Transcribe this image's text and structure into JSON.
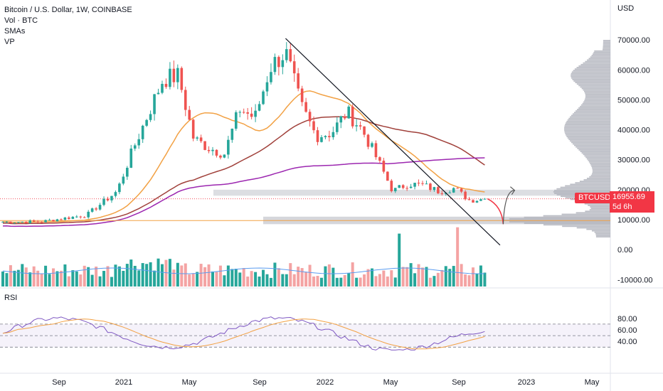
{
  "legend": {
    "title": "Bitcoin / U.S. Dollar, 1W, COINBASE",
    "vol": "Vol · BTC",
    "smas": "SMAs",
    "vp": "VP"
  },
  "axis_currency": "USD",
  "rsi_title": "RSI",
  "price_label": {
    "symbol": "BTCUSD",
    "price": "16955.69",
    "countdown": "5d 6h"
  },
  "colors": {
    "up": "#26a69a",
    "down": "#ef5350",
    "vol_up": "#26a69a",
    "vol_down": "#f4a3a3",
    "sma_short": "#f2a144",
    "sma_mid": "#a0403a",
    "sma_long": "#9c27b0",
    "vol_ma": "#5b9cf0",
    "rsi": "#7e57c2",
    "rsi_ma": "#f2a144",
    "vp": "#b2b5be",
    "badge": "#f23645"
  },
  "chart_data": {
    "type": "candlestick",
    "interval": "1W",
    "price_axis": {
      "ticks": [
        "70000.00",
        "60000.00",
        "50000.00",
        "40000.00",
        "30000.00",
        "20000.00",
        "10000.00",
        "0.00",
        "-10000.00"
      ],
      "values": [
        70000,
        60000,
        50000,
        40000,
        30000,
        20000,
        10000,
        0,
        -10000
      ]
    },
    "rsi_axis": {
      "ticks": [
        "80.00",
        "60.00",
        "40.00"
      ],
      "values": [
        80,
        60,
        40
      ],
      "bands": [
        70,
        50,
        30
      ]
    },
    "time_axis": {
      "labels": [
        "Sep",
        "2021",
        "May",
        "Sep",
        "2022",
        "May",
        "Sep",
        "2023",
        "May"
      ]
    },
    "price_series_anchors": [
      [
        "2020-07",
        9300
      ],
      [
        "2020-09",
        10800
      ],
      [
        "2020-10",
        11500
      ],
      [
        "2020-11",
        15500
      ],
      [
        "2020-12",
        19500
      ],
      [
        "2021-01",
        33000
      ],
      [
        "2021-02",
        45000
      ],
      [
        "2021-03",
        57000
      ],
      [
        "2021-04",
        58000
      ],
      [
        "2021-05",
        37000
      ],
      [
        "2021-06",
        34000
      ],
      [
        "2021-07",
        32000
      ],
      [
        "2021-08",
        47000
      ],
      [
        "2021-09",
        44000
      ],
      [
        "2021-10",
        61000
      ],
      [
        "2021-11",
        66000
      ],
      [
        "2021-12",
        48000
      ],
      [
        "2022-01",
        38000
      ],
      [
        "2022-02",
        39000
      ],
      [
        "2022-03",
        46000
      ],
      [
        "2022-04",
        40000
      ],
      [
        "2022-05",
        30000
      ],
      [
        "2022-06",
        19500
      ],
      [
        "2022-07",
        22000
      ],
      [
        "2022-08",
        21500
      ],
      [
        "2022-09",
        19500
      ],
      [
        "2022-10",
        20500
      ],
      [
        "2022-11",
        16500
      ],
      [
        "2022-12",
        16955.69
      ]
    ],
    "current_price": 16955.69,
    "horizontal_level": 9700,
    "sma_series": [
      {
        "name": "short",
        "color": "#f2a144"
      },
      {
        "name": "mid",
        "color": "#a0403a"
      },
      {
        "name": "long",
        "color": "#9c27b0"
      }
    ],
    "trendline": {
      "from": [
        "2021-11",
        70500
      ],
      "to": [
        "2023-01",
        1500
      ]
    },
    "projection": {
      "points": [
        16955.69,
        8500,
        19800
      ],
      "color_down": "#f23645",
      "color_up": "#555555"
    }
  }
}
